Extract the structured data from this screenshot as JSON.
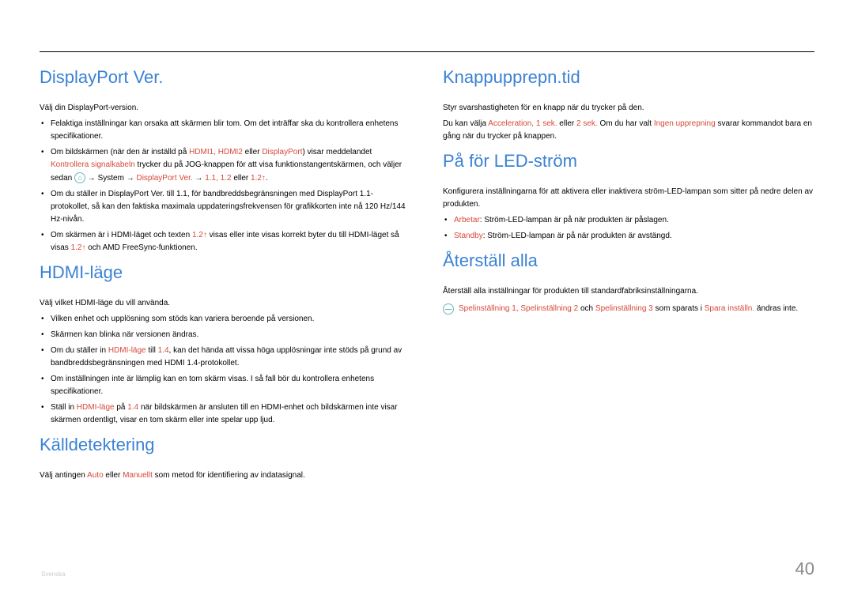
{
  "page_number": "40",
  "lang_code": "Svenska",
  "left": {
    "s1": {
      "title": "DisplayPort Ver.",
      "p1": "Välj din DisplayPort-version.",
      "b1": "Felaktiga inställningar kan orsaka att skärmen blir tom. Om det inträffar ska du kontrollera enhetens specifikationer.",
      "b2_a": "Om bildskärmen (när den är inställd på ",
      "b2_ports": "HDMI1, HDMI2",
      "b2_b": " eller ",
      "b2_dp": "DisplayPort",
      "b2_c": ") visar meddelandet ",
      "b2_msg": "Kontrollera signalkabeln",
      "b2_d": " trycker du på JOG-knappen för att visa funktionstangentskärmen, och väljer sedan ",
      "b2_menu1": "",
      "b2_arrow": " → System → ",
      "b2_dpv": "DisplayPort Ver.",
      "b2_arrow2": " → ",
      "b2_opts": "1.1, 1.2",
      "b2_or": " eller ",
      "b2_opt3": "1.2↑",
      "b2_end": ".",
      "b3": "Om du ställer in DisplayPort Ver. till 1.1, för bandbreddsbegränsningen med DisplayPort 1.1-protokollet, så kan den faktiska maximala uppdateringsfrekvensen för grafikkorten inte nå 120 Hz/144 Hz-nivån.",
      "b4_a": "Om skärmen är i HDMI-läget och texten ",
      "b4_hl": "1.2↑",
      "b4_b": " visas eller inte visas korrekt byter du till HDMI-läget så visas ",
      "b4_hl2": "1.2↑",
      "b4_c": " och AMD FreeSync-funktionen."
    },
    "s2": {
      "title": "HDMI-läge",
      "p1": "Välj vilket HDMI-läge du vill använda.",
      "b1": "Vilken enhet och upplösning som stöds kan variera beroende på versionen.",
      "b2": "Skärmen kan blinka när versionen ändras.",
      "b3_a": "Om du ställer in ",
      "b3_hl1": "HDMI-läge",
      "b3_b": " till ",
      "b3_hl2": "1.4",
      "b3_c": ", kan det hända att vissa höga upplösningar inte stöds på grund av bandbreddsbegränsningen med HDMI 1.4-protokollet.",
      "b4": "Om inställningen inte är lämplig kan en tom skärm visas. I så fall bör du kontrollera enhetens specifikationer.",
      "b5_a": "Ställ in ",
      "b5_hl1": "HDMI-läge",
      "b5_b": " på ",
      "b5_hl2": "1.4",
      "b5_c": " när bildskärmen är ansluten till en HDMI-enhet och bildskärmen inte visar skärmen ordentligt, visar en tom skärm eller inte spelar upp ljud."
    },
    "s3": {
      "title": "Källdetektering",
      "p1_a": "Välj antingen ",
      "p1_hl1": "Auto",
      "p1_b": " eller ",
      "p1_hl2": "Manuellt",
      "p1_c": " som metod för identifiering av indatasignal."
    }
  },
  "right": {
    "s4": {
      "title": "Knappupprepn.tid",
      "p1": "Styr svarshastigheten för en knapp när du trycker på den.",
      "p2_a": "Du kan välja ",
      "p2_hl1": "Acceleration, 1 sek.",
      "p2_b": " eller ",
      "p2_hl2": "2 sek.",
      "p2_c": " Om du har valt ",
      "p2_hl3": "Ingen upprepning",
      "p2_d": " svarar kommandot bara en gång när du trycker på knappen."
    },
    "s5": {
      "title": "På för LED-ström",
      "p1": "Konfigurera inställningarna för att aktivera eller inaktivera ström-LED-lampan som sitter på nedre delen av produkten.",
      "b1_a": "Arbetar",
      "b1_b": ": Ström-LED-lampan är på när produkten är påslagen.",
      "b2_a": "Standby",
      "b2_b": ": Ström-LED-lampan är på när produkten är avstängd."
    },
    "s6": {
      "title": "Återställ alla",
      "p1": "Återställ alla inställningar för produkten till standardfabriksinställningarna.",
      "note_a": "",
      "note_hl1": "Spelinställning 1, Spelinställning 2",
      "note_b": " och ",
      "note_hl2": "Spelinställning 3",
      "note_c": " som sparats i ",
      "note_hl3": "Spara inställn.",
      "note_d": " ändras inte."
    }
  }
}
